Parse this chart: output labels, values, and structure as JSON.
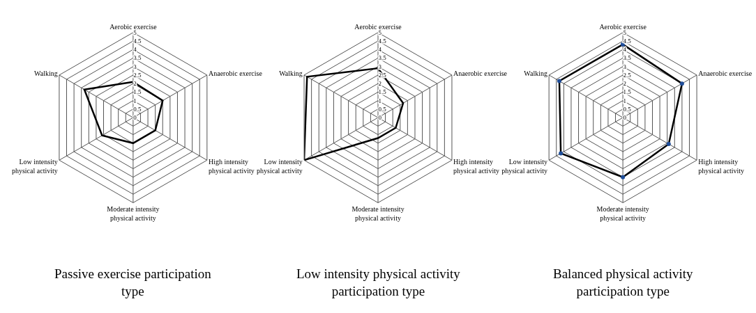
{
  "chart_data": [
    {
      "type": "radar",
      "title": "Passive exercise participation type",
      "categories": [
        "Aerobic exercise",
        "Anaerobic exercise",
        "High intensity physical activity",
        "Moderate intensity physical activity",
        "Low intensity physical activity",
        "Walking"
      ],
      "ylim": [
        0,
        5
      ],
      "yticks": [
        0,
        0.5,
        1,
        1.5,
        2,
        2.5,
        3,
        3.5,
        4,
        4.5,
        5
      ],
      "grid": true,
      "series": [
        {
          "color": "#000000",
          "values": [
            2.1,
            2.0,
            1.5,
            1.5,
            2.1,
            3.3
          ]
        }
      ]
    },
    {
      "type": "radar",
      "title": "Low intensity physical activity participation type",
      "categories": [
        "Aerobic exercise",
        "Anaerobic exercise",
        "High intensity physical activity",
        "Moderate intensity physical activity",
        "Low intensity physical activity",
        "Walking"
      ],
      "ylim": [
        0,
        5
      ],
      "yticks": [
        0,
        0.5,
        1,
        1.5,
        2,
        2.5,
        3,
        3.5,
        4,
        4.5,
        5
      ],
      "grid": true,
      "series": [
        {
          "color": "#000000",
          "values": [
            2.9,
            1.7,
            1.2,
            1.2,
            5.0,
            4.8
          ]
        }
      ]
    },
    {
      "type": "radar",
      "title": "Balanced physical activity participation type",
      "categories": [
        "Aerobic exercise",
        "Anaerobic exercise",
        "High intensity physical activity",
        "Moderate intensity physical activity",
        "Low intensity physical activity",
        "Walking"
      ],
      "ylim": [
        0,
        5
      ],
      "yticks": [
        0,
        0.5,
        1,
        1.5,
        2,
        2.5,
        3,
        3.5,
        4,
        4.5,
        5
      ],
      "grid": true,
      "marker": "circle",
      "series": [
        {
          "color": "#000000",
          "values": [
            4.3,
            4.0,
            3.1,
            3.5,
            4.2,
            4.3
          ]
        }
      ]
    }
  ]
}
